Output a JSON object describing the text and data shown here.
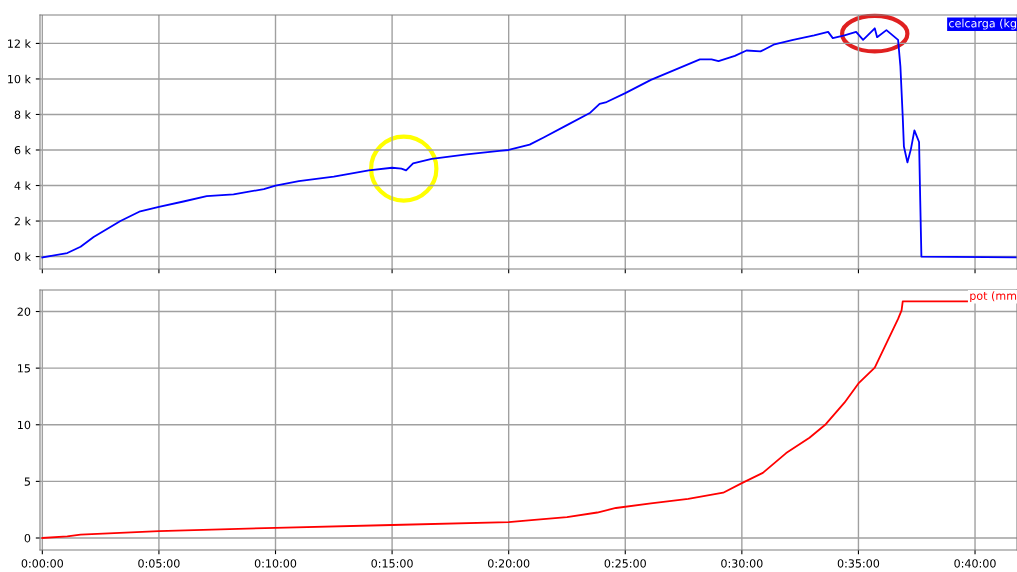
{
  "chart_data": [
    {
      "type": "line",
      "xlim": [
        -0.1,
        41.8
      ],
      "ylim": [
        -0.7,
        13.6
      ],
      "xticks": [
        {
          "value": 0,
          "label": null
        },
        {
          "value": 5,
          "label": null
        },
        {
          "value": 10,
          "label": null
        },
        {
          "value": 15,
          "label": null
        },
        {
          "value": 20,
          "label": null
        },
        {
          "value": 25,
          "label": null
        },
        {
          "value": 30,
          "label": null
        },
        {
          "value": 35,
          "label": null
        },
        {
          "value": 40,
          "label": null
        }
      ],
      "yticks": [
        {
          "value": 0,
          "label": "0 k"
        },
        {
          "value": 2,
          "label": "2 k"
        },
        {
          "value": 4,
          "label": "4 k"
        },
        {
          "value": 6,
          "label": "6 k"
        },
        {
          "value": 8,
          "label": "8 k"
        },
        {
          "value": 10,
          "label": "10 k"
        },
        {
          "value": 12,
          "label": "12 k"
        }
      ],
      "grid": true,
      "tick_labels": "y",
      "line_style": "solid",
      "series": [
        {
          "name": "celcarga (kg",
          "color": "#0000ff",
          "x": [
            0,
            1.07,
            1.64,
            2.2,
            3.35,
            4.2,
            5,
            6.05,
            7.05,
            8.2,
            9.5,
            10,
            11.0,
            12.5,
            14.0,
            15,
            15.4,
            15.6,
            15.9,
            16.7,
            18.2,
            19.6,
            20,
            20.9,
            21.5,
            22.5,
            23.5,
            23.9,
            24.2,
            25,
            26.1,
            27.1,
            28.2,
            28.7,
            29,
            29.7,
            30.2,
            30.8,
            31.4,
            32.2,
            33.1,
            33.7,
            33.9,
            34.4,
            34.9,
            35.2,
            35.7,
            35.8,
            36.2,
            36.7,
            36.8,
            36.9,
            36.95,
            37.1,
            37.25,
            37.4,
            37.6,
            37.65,
            37.7,
            41.8
          ],
          "values": [
            -0.05,
            0.2,
            0.55,
            1.1,
            2.0,
            2.55,
            2.8,
            3.1,
            3.4,
            3.5,
            3.8,
            4.0,
            4.25,
            4.5,
            4.85,
            5.0,
            4.95,
            4.85,
            5.25,
            5.5,
            5.75,
            5.95,
            6.0,
            6.3,
            6.7,
            7.4,
            8.1,
            8.6,
            8.7,
            9.2,
            9.95,
            10.5,
            11.1,
            11.1,
            11.0,
            11.3,
            11.6,
            11.55,
            11.95,
            12.2,
            12.45,
            12.65,
            12.3,
            12.45,
            12.65,
            12.2,
            12.85,
            12.35,
            12.75,
            12.2,
            10.7,
            7.85,
            6.2,
            5.3,
            6.05,
            7.1,
            6.45,
            3.15,
            0,
            -0.05
          ]
        }
      ]
    },
    {
      "type": "line",
      "xlim": [
        -0.1,
        41.8
      ],
      "ylim": [
        -1.06,
        21.9
      ],
      "xticks": [
        {
          "value": 0,
          "label": "0:00:00"
        },
        {
          "value": 5,
          "label": "0:05:00"
        },
        {
          "value": 10,
          "label": "0:10:00"
        },
        {
          "value": 15,
          "label": "0:15:00"
        },
        {
          "value": 20,
          "label": "0:20:00"
        },
        {
          "value": 25,
          "label": "0:25:00"
        },
        {
          "value": 30,
          "label": "0:30:00"
        },
        {
          "value": 35,
          "label": "0:35:00"
        },
        {
          "value": 40,
          "label": "0:40:00"
        }
      ],
      "yticks": [
        0,
        5,
        10,
        15,
        20
      ],
      "grid": true,
      "line_style": "solid",
      "series": [
        {
          "name": "pot (mm",
          "color": "#ff0000",
          "x": [
            0,
            1.07,
            1.64,
            5,
            10,
            15,
            20,
            21.1,
            22.5,
            23.8,
            24.6,
            26.1,
            27.7,
            29.2,
            30,
            30.9,
            31.9,
            32.9,
            33.6,
            34.4,
            35,
            35.7,
            36.7,
            36.85,
            36.9,
            41.8
          ],
          "values": [
            0,
            0.15,
            0.3,
            0.6,
            0.9,
            1.15,
            1.4,
            1.6,
            1.85,
            2.25,
            2.65,
            3.05,
            3.45,
            4.0,
            4.85,
            5.75,
            7.5,
            8.85,
            10.05,
            11.95,
            13.65,
            15.05,
            19.35,
            20.1,
            20.9,
            20.9
          ]
        }
      ]
    }
  ]
}
